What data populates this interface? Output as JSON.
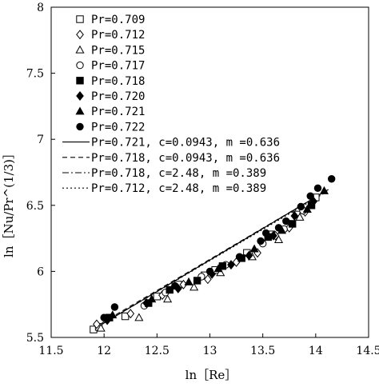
{
  "chart_data": {
    "type": "scatter",
    "xlabel": "ln［Re］",
    "ylabel": "ln［Nu/Pr^(1/3)］",
    "xlim": [
      11.5,
      14.5
    ],
    "ylim": [
      5.5,
      8
    ],
    "x_ticks": [
      "11.5",
      "12",
      "12.5",
      "13",
      "13.5",
      "14",
      "14.5"
    ],
    "y_ticks": [
      "5.5",
      "6",
      "6.5",
      "7",
      "7.5",
      "8"
    ],
    "grid": false,
    "legend_position": "top-left",
    "series": [
      {
        "name": "Pr=0.709",
        "marker": "square-open",
        "points": [
          [
            11.9,
            5.56
          ],
          [
            11.95,
            5.58
          ],
          [
            12.2,
            5.66
          ],
          [
            12.5,
            5.81
          ],
          [
            12.7,
            5.9
          ],
          [
            12.95,
            5.97
          ],
          [
            13.05,
            6.01
          ],
          [
            13.35,
            6.14
          ],
          [
            13.58,
            6.28
          ],
          [
            13.82,
            6.43
          ],
          [
            14.0,
            6.56
          ]
        ]
      },
      {
        "name": "Pr=0.712",
        "marker": "diamond-open",
        "points": [
          [
            11.93,
            5.6
          ],
          [
            12.25,
            5.68
          ],
          [
            12.55,
            5.82
          ],
          [
            12.75,
            5.9
          ],
          [
            12.98,
            5.94
          ],
          [
            13.25,
            6.07
          ],
          [
            13.45,
            6.14
          ],
          [
            13.62,
            6.27
          ],
          [
            13.75,
            6.33
          ],
          [
            13.9,
            6.45
          ]
        ]
      },
      {
        "name": "Pr=0.715",
        "marker": "triangle-open",
        "points": [
          [
            11.97,
            5.57
          ],
          [
            12.33,
            5.65
          ],
          [
            12.6,
            5.79
          ],
          [
            12.85,
            5.88
          ],
          [
            13.1,
            5.99
          ],
          [
            13.4,
            6.11
          ],
          [
            13.65,
            6.24
          ],
          [
            13.85,
            6.41
          ]
        ]
      },
      {
        "name": "Pr=0.717",
        "marker": "circle-open",
        "points": [
          [
            12.38,
            5.74
          ],
          [
            12.58,
            5.84
          ],
          [
            12.92,
            5.96
          ],
          [
            13.15,
            6.05
          ],
          [
            13.5,
            6.21
          ],
          [
            13.7,
            6.32
          ],
          [
            13.88,
            6.46
          ]
        ]
      },
      {
        "name": "Pr=0.718",
        "marker": "square-filled",
        "points": [
          [
            12.05,
            5.65
          ],
          [
            12.42,
            5.76
          ],
          [
            12.62,
            5.86
          ],
          [
            12.88,
            5.93
          ],
          [
            13.12,
            6.04
          ],
          [
            13.3,
            6.1
          ],
          [
            13.55,
            6.26
          ],
          [
            13.78,
            6.36
          ],
          [
            13.96,
            6.5
          ]
        ]
      },
      {
        "name": "Pr=0.720",
        "marker": "diamond-filled",
        "points": [
          [
            12.03,
            5.63
          ],
          [
            12.4,
            5.76
          ],
          [
            12.7,
            5.87
          ],
          [
            13.02,
            5.98
          ],
          [
            13.2,
            6.05
          ],
          [
            13.37,
            6.12
          ],
          [
            13.6,
            6.27
          ],
          [
            13.8,
            6.42
          ],
          [
            13.98,
            6.53
          ]
        ]
      },
      {
        "name": "Pr=0.721",
        "marker": "triangle-filled",
        "points": [
          [
            12.08,
            5.67
          ],
          [
            12.45,
            5.79
          ],
          [
            12.8,
            5.92
          ],
          [
            13.08,
            6.02
          ],
          [
            13.42,
            6.17
          ],
          [
            13.68,
            6.31
          ],
          [
            13.92,
            6.47
          ],
          [
            14.08,
            6.61
          ]
        ]
      },
      {
        "name": "Pr=0.722",
        "marker": "circle-filled",
        "points": [
          [
            12.0,
            5.65
          ],
          [
            12.1,
            5.73
          ],
          [
            12.67,
            5.89
          ],
          [
            13.0,
            6.0
          ],
          [
            13.28,
            6.11
          ],
          [
            13.48,
            6.23
          ],
          [
            13.53,
            6.29
          ],
          [
            13.65,
            6.33
          ],
          [
            13.72,
            6.38
          ],
          [
            13.86,
            6.49
          ],
          [
            13.95,
            6.57
          ],
          [
            14.02,
            6.63
          ],
          [
            14.15,
            6.7
          ]
        ]
      }
    ],
    "fits": [
      {
        "name": "Pr=0.721, c=0.0943, m =0.636",
        "dash": "solid",
        "x": [
          11.98,
          14.12
        ],
        "y": [
          5.6,
          6.62
        ]
      },
      {
        "name": "Pr=0.718, c=0.0943, m =0.636",
        "dash": "dashed",
        "x": [
          11.98,
          14.12
        ],
        "y": [
          5.61,
          6.62
        ]
      },
      {
        "name": "Pr=0.718, c=2.48, m =0.389",
        "dash": "dashdot",
        "x": [
          11.98,
          14.12
        ],
        "y": [
          5.6,
          6.62
        ]
      },
      {
        "name": "Pr=0.712, c=2.48, m =0.389",
        "dash": "dotted",
        "x": [
          11.98,
          14.12
        ],
        "y": [
          5.6,
          6.61
        ]
      }
    ]
  }
}
